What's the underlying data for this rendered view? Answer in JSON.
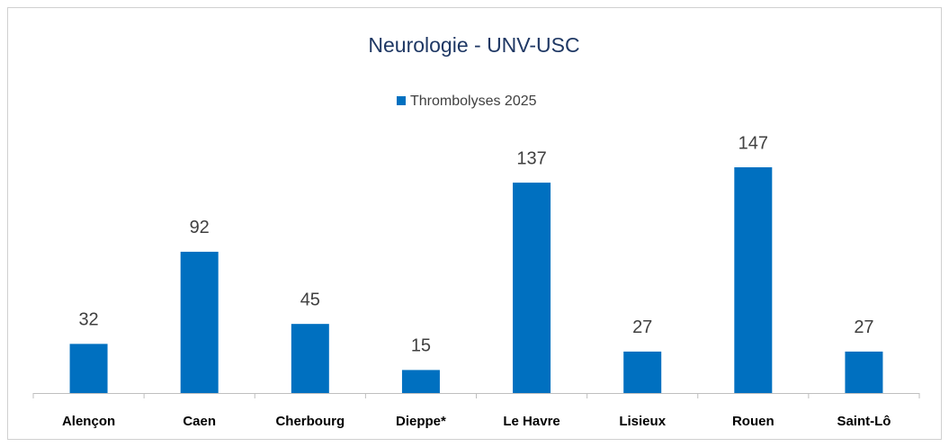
{
  "chart_data": {
    "type": "bar",
    "title": "Neurologie - UNV-USC",
    "categories": [
      "Alençon",
      "Caen",
      "Cherbourg",
      "Dieppe*",
      "Le Havre",
      "Lisieux",
      "Rouen",
      "Saint-Lô"
    ],
    "series": [
      {
        "name": "Thrombolyses 2025",
        "color": "#0070c0",
        "values": [
          32,
          92,
          45,
          15,
          137,
          27,
          147,
          27
        ]
      }
    ],
    "data_labels": true
  }
}
